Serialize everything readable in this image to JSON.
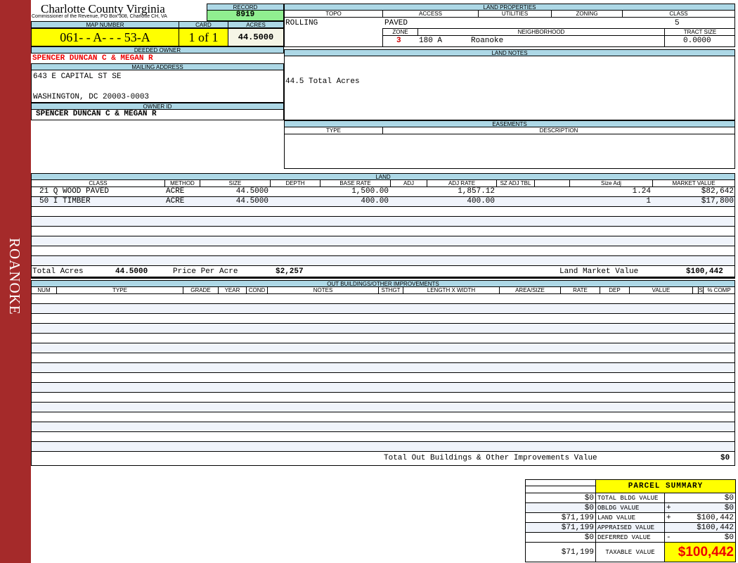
{
  "sidebar": {
    "label": "ROANOKE",
    "color": "#a52a2a"
  },
  "header": {
    "title": "Charlotte County Virginia",
    "subtitle": "Commissioner of the Revenue, PO Box 308, Charlotte CH, VA",
    "record_label": "RECORD",
    "record": "8919",
    "map_label": "MAP NUMBER",
    "map_number": "061- - A- - - 53-A",
    "card_label": "CARD",
    "card": "1 of 1",
    "acres_label": "ACRES",
    "acres": "44.5000"
  },
  "owner": {
    "deeded_label": "DEEDED OWNER",
    "deeded": "SPENCER DUNCAN C & MEGAN R",
    "mailing_label": "MAILING ADDRESS",
    "address1": "643 E CAPITAL ST SE",
    "address2": "WASHINGTON, DC 20003-0003",
    "id_label": "OWNER ID",
    "id": "SPENCER DUNCAN C & MEGAN R"
  },
  "land_properties": {
    "title": "LAND PROPERTIES",
    "topo_label": "TOPO",
    "access_label": "ACCESS",
    "utilities_label": "UTILITIES",
    "zoning_label": "ZONING",
    "class_label": "CLASS",
    "topo": "ROLLING",
    "access": "PAVED",
    "class": "5",
    "zone_label": "ZONE",
    "neighborhood_label": "NEIGHBORHOOD",
    "tract_label": "TRACT SIZE",
    "zone": "3",
    "neighborhood_code": "180 A",
    "neighborhood": "Roanoke",
    "tract_size": "0.0000"
  },
  "land_notes": {
    "title": "LAND NOTES",
    "text": "44.5 Total Acres"
  },
  "easements": {
    "title": "EASEMENTS",
    "type_label": "TYPE",
    "description_label": "DESCRIPTION"
  },
  "land": {
    "title": "LAND",
    "columns": [
      "CLASS",
      "METHOD",
      "SIZE",
      "DEPTH",
      "BASE RATE",
      "ADJ",
      "ADJ RATE",
      "SZ ADJ TBL",
      "",
      "Size Adj",
      "MARKET VALUE"
    ],
    "rows": [
      [
        "21 Q WOOD PAVED",
        "ACRE",
        "44.5000",
        "",
        "1,500.00",
        "",
        "1,857.12",
        "",
        "",
        "1.24",
        "$82,642"
      ],
      [
        "50 I TIMBER",
        "ACRE",
        "44.5000",
        "",
        "400.00",
        "",
        "400.00",
        "",
        "",
        "1",
        "$17,800"
      ],
      [],
      [],
      [],
      [],
      [],
      []
    ],
    "total_acres_label": "Total Acres",
    "total_acres": "44.5000",
    "price_label": "Price Per Acre",
    "price_per_acre": "$2,257",
    "market_label": "Land Market Value",
    "market_value": "$100,442"
  },
  "outbuildings": {
    "title": "OUT BUILDINGS/OTHER IMPROVEMENTS",
    "columns": [
      "NUM",
      "TYPE",
      "GRADE",
      "YEAR",
      "COND",
      "NOTES",
      "STHGT",
      "LENGTH X WIDTH",
      "AREA/SIZE",
      "RATE",
      "DEP",
      "VALUE",
      "",
      "S",
      "% COMP"
    ],
    "row_count": 16,
    "total_label": "Total Out Buildings & Other Improvements Value",
    "total": "$0"
  },
  "summary": {
    "title": "PARCEL SUMMARY",
    "rows": [
      {
        "left": "$0",
        "label": "TOTAL BLDG VALUE",
        "sign": "",
        "value": "$0"
      },
      {
        "left": "$0",
        "label": "OBLDG VALUE",
        "sign": "+",
        "value": "$0"
      },
      {
        "left": "$71,199",
        "label": "LAND VALUE",
        "sign": "+",
        "value": "$100,442"
      },
      {
        "left": "$71,199",
        "label": "APPRAISED VALUE",
        "sign": "",
        "value": "$100,442"
      },
      {
        "left": "$0",
        "label": "DEFERRED VALUE",
        "sign": "-",
        "value": "$0"
      }
    ],
    "taxable_left": "$71,199",
    "taxable_label": "TAXABLE VALUE",
    "taxable": "$100,442"
  }
}
